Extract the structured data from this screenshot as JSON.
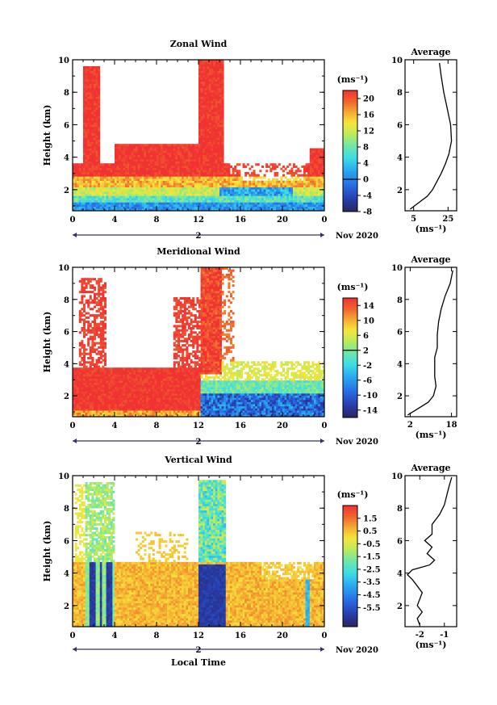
{
  "chart_data": [
    {
      "type": "heatmap",
      "title": "Zonal Wind",
      "ylabel": "Height (km)",
      "xlabel": "",
      "date_label": "Nov 2020",
      "day_label": "2",
      "xlim": [
        0,
        24
      ],
      "ylim": [
        0.7,
        10
      ],
      "xticks": [
        "0",
        "4",
        "8",
        "12",
        "16",
        "20",
        "0"
      ],
      "yticks": [
        "2",
        "4",
        "6",
        "8",
        "10"
      ],
      "colorbar": {
        "unit": "(ms⁻¹)",
        "min": -8,
        "max": 22,
        "ticks": [
          "20",
          "16",
          "12",
          "8",
          "4",
          "0",
          "-4",
          "-8"
        ],
        "tick_values": [
          20,
          16,
          12,
          8,
          4,
          0,
          -4,
          -8
        ],
        "zero_line": 0
      },
      "profile": {
        "title": "Average",
        "xlabel": "(ms⁻¹)",
        "xticks": [
          "5",
          "25"
        ],
        "xtick_values": [
          5,
          25
        ],
        "xlim": [
          0,
          30
        ],
        "yticks": [
          "2",
          "4",
          "6",
          "8",
          "10"
        ],
        "heights": [
          0.8,
          1.2,
          1.6,
          2.0,
          2.4,
          3.0,
          3.6,
          4.2,
          5.0,
          6.0,
          7.0,
          8.0,
          9.0,
          9.8
        ],
        "values": [
          3,
          8,
          13,
          16,
          18,
          21,
          23.5,
          25.5,
          27,
          26.5,
          24.5,
          22.5,
          21,
          20
        ]
      }
    },
    {
      "type": "heatmap",
      "title": "Meridional Wind",
      "ylabel": "Height (km)",
      "xlabel": "",
      "date_label": "Nov 2020",
      "day_label": "2",
      "xlim": [
        0,
        24
      ],
      "ylim": [
        0.7,
        10
      ],
      "xticks": [
        "0",
        "4",
        "8",
        "12",
        "16",
        "20",
        "0"
      ],
      "yticks": [
        "2",
        "4",
        "6",
        "8",
        "10"
      ],
      "colorbar": {
        "unit": "(ms⁻¹)",
        "min": -16,
        "max": 16,
        "ticks": [
          "14",
          "10",
          "6",
          "2",
          "-2",
          "-6",
          "-10",
          "-14"
        ],
        "tick_values": [
          14,
          10,
          6,
          2,
          -2,
          -6,
          -10,
          -14
        ],
        "zero_line": 2
      },
      "profile": {
        "title": "Average",
        "xlabel": "(ms⁻¹)",
        "xticks": [
          "2",
          "18"
        ],
        "xtick_values": [
          2,
          18
        ],
        "xlim": [
          0,
          20
        ],
        "yticks": [
          "2",
          "4",
          "6",
          "8",
          "10"
        ],
        "heights": [
          0.8,
          1.2,
          1.6,
          2.0,
          2.6,
          3.2,
          3.8,
          4.4,
          5.0,
          5.8,
          6.6,
          7.4,
          8.2,
          9.0,
          9.8
        ],
        "values": [
          1,
          5,
          9,
          11,
          12,
          11.5,
          11.5,
          11.5,
          12.5,
          12.5,
          13,
          14,
          15.5,
          17.5,
          18.5
        ]
      }
    },
    {
      "type": "heatmap",
      "title": "Vertical Wind",
      "ylabel": "Height (km)",
      "xlabel": "Local Time",
      "date_label": "Nov 2020",
      "day_label": "2",
      "xlim": [
        0,
        24
      ],
      "ylim": [
        0.7,
        10
      ],
      "xticks": [
        "0",
        "4",
        "8",
        "12",
        "16",
        "20",
        "0"
      ],
      "yticks": [
        "2",
        "4",
        "6",
        "8",
        "10"
      ],
      "colorbar": {
        "unit": "(ms⁻¹)",
        "min": -7,
        "max": 2.5,
        "ticks": [
          "1.5",
          "0.5",
          "-0.5",
          "-1.5",
          "-2.5",
          "-3.5",
          "-4.5",
          "-5.5"
        ],
        "tick_values": [
          1.5,
          0.5,
          -0.5,
          -1.5,
          -2.5,
          -3.5,
          -4.5,
          -5.5
        ],
        "zero_line": null
      },
      "profile": {
        "title": "Average",
        "xlabel": "(ms⁻¹)",
        "xticks": [
          "-2",
          "-1"
        ],
        "xtick_values": [
          -2,
          -1
        ],
        "xlim": [
          -2.6,
          -0.5
        ],
        "yticks": [
          "2",
          "4",
          "6",
          "8",
          "10"
        ],
        "heights": [
          0.8,
          1.2,
          1.6,
          2.0,
          2.4,
          2.8,
          3.2,
          3.6,
          3.9,
          4.2,
          4.5,
          4.8,
          5.2,
          5.6,
          6.0,
          6.4,
          7.0,
          7.6,
          8.2,
          8.8,
          9.4,
          9.9
        ],
        "values": [
          -2.0,
          -2.1,
          -1.9,
          -2.1,
          -2.0,
          -1.9,
          -2.1,
          -2.3,
          -2.5,
          -2.3,
          -1.6,
          -1.4,
          -1.7,
          -1.5,
          -1.8,
          -1.5,
          -1.5,
          -1.2,
          -1.0,
          -0.9,
          -0.8,
          -0.7
        ]
      }
    }
  ]
}
